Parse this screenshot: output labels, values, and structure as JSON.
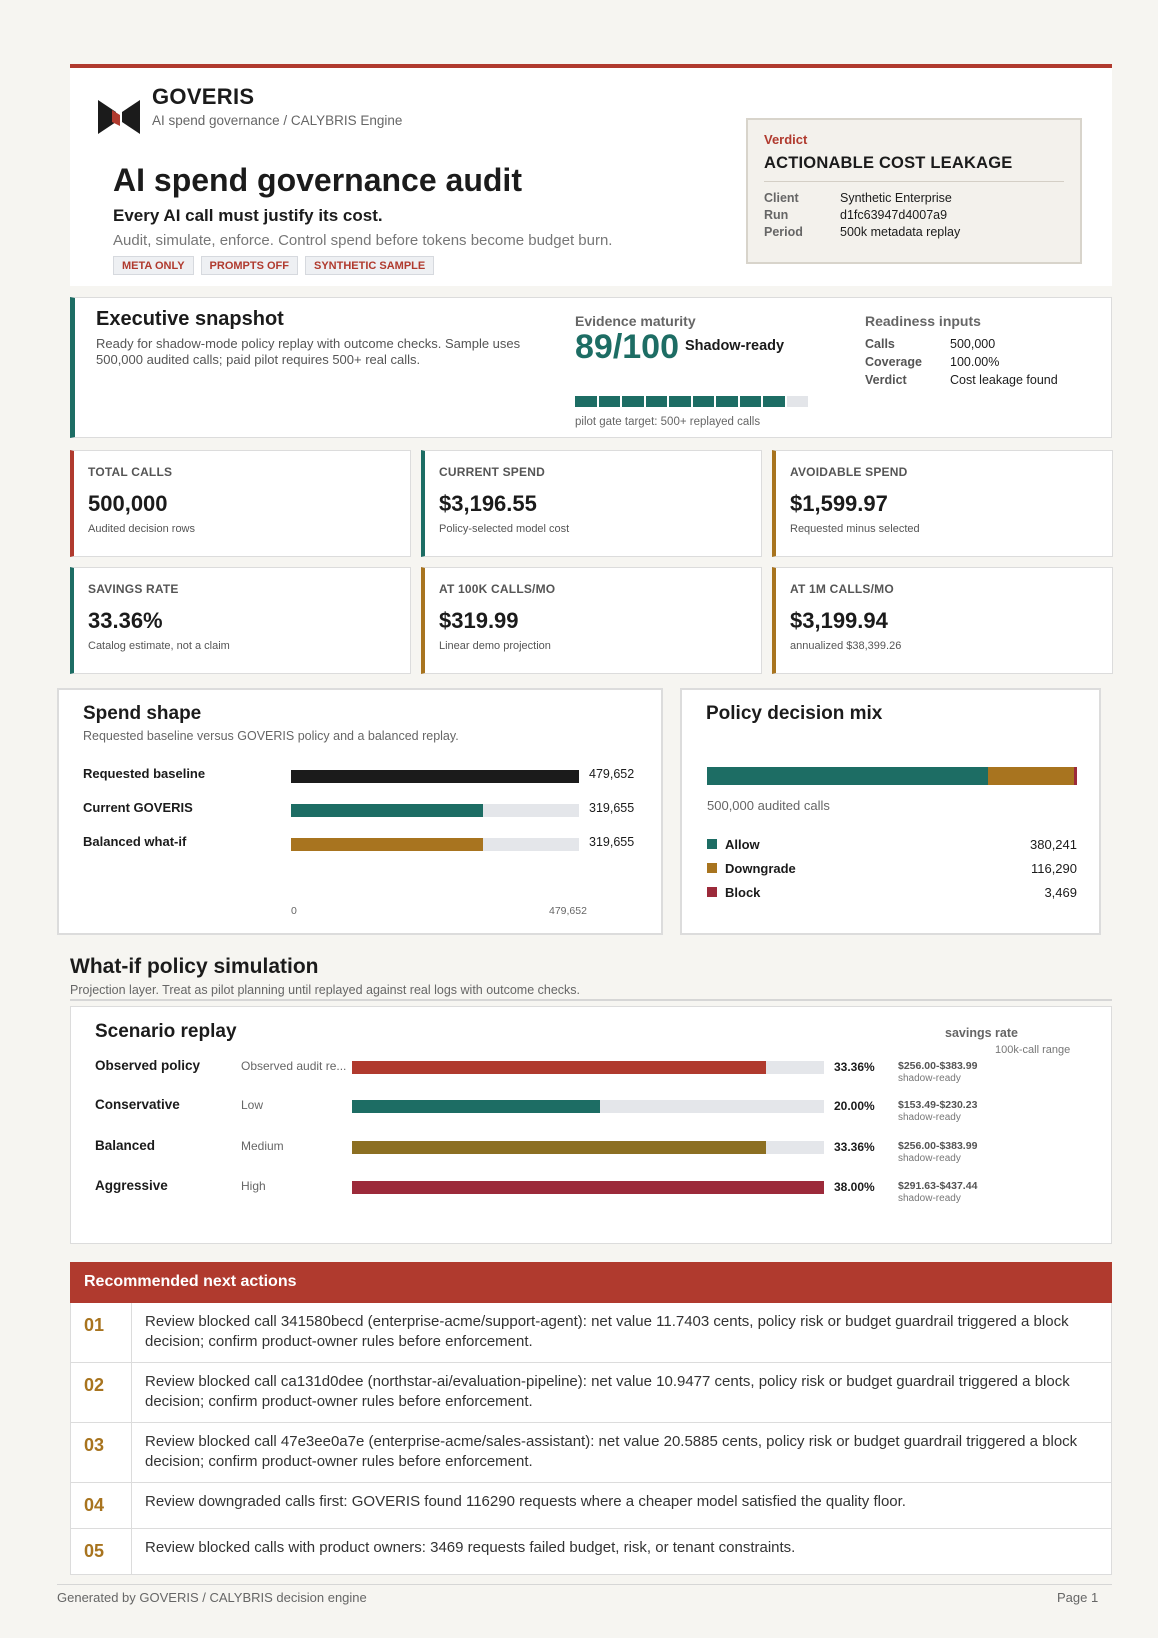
{
  "colors": {
    "accent_red": "#b03a2e",
    "teal": "#1d6d64",
    "amber": "#a8741f",
    "olive": "#8c6f22",
    "crimson": "#9c2a3a",
    "dark": "#1b1b1b"
  },
  "header": {
    "brand": "GOVERIS",
    "brand_sub": "AI spend governance / CALYBRIS Engine",
    "logo_icon": "goveris-logo",
    "title": "AI spend governance audit",
    "tagline": "Every AI call must justify its cost.",
    "description": "Audit, simulate, enforce. Control spend before tokens become budget burn.",
    "tags": [
      "META ONLY",
      "PROMPTS OFF",
      "SYNTHETIC SAMPLE"
    ]
  },
  "verdict": {
    "label": "Verdict",
    "title": "ACTIONABLE COST LEAKAGE",
    "rows": [
      {
        "k": "Client",
        "v": "Synthetic Enterprise"
      },
      {
        "k": "Run",
        "v": "d1fc63947d4007a9"
      },
      {
        "k": "Period",
        "v": "500k metadata replay"
      }
    ]
  },
  "snapshot": {
    "title": "Executive snapshot",
    "text": "Ready for shadow-mode policy replay with outcome checks. Sample uses 500,000 audited calls; paid pilot requires 500+ real calls.",
    "maturity_label": "Evidence maturity",
    "score": "89/100",
    "state": "Shadow-ready",
    "progress_filled": 9,
    "progress_total": 10,
    "note": "pilot gate target: 500+ replayed calls",
    "readiness_title": "Readiness inputs",
    "readiness": [
      {
        "k": "Calls",
        "v": "500,000"
      },
      {
        "k": "Coverage",
        "v": "100.00%"
      },
      {
        "k": "Verdict",
        "v": "Cost leakage found"
      }
    ]
  },
  "kpis": [
    {
      "label": "TOTAL CALLS",
      "value": "500,000",
      "sub": "Audited decision rows",
      "color": "#b03a2e"
    },
    {
      "label": "CURRENT SPEND",
      "value": "$3,196.55",
      "sub": "Policy-selected model cost",
      "color": "#1d6d64"
    },
    {
      "label": "AVOIDABLE SPEND",
      "value": "$1,599.97",
      "sub": "Requested minus selected",
      "color": "#a8741f"
    },
    {
      "label": "SAVINGS RATE",
      "value": "33.36%",
      "sub": "Catalog estimate, not a claim",
      "color": "#1d6d64"
    },
    {
      "label": "AT 100K CALLS/MO",
      "value": "$319.99",
      "sub": "Linear demo projection",
      "color": "#a8741f"
    },
    {
      "label": "AT 1M CALLS/MO",
      "value": "$3,199.94",
      "sub": "annualized $38,399.26",
      "color": "#a8741f"
    }
  ],
  "spend_shape": {
    "title": "Spend shape",
    "subtitle": "Requested baseline versus GOVERIS policy and a balanced replay.",
    "axis_min": "0",
    "axis_max": "479,652",
    "max_value": 479652,
    "rows": [
      {
        "label": "Requested baseline",
        "value": 479652,
        "display": "479,652",
        "color": "#1b1b1b"
      },
      {
        "label": "Current GOVERIS",
        "value": 319655,
        "display": "319,655",
        "color": "#1d6d64"
      },
      {
        "label": "Balanced what-if",
        "value": 319655,
        "display": "319,655",
        "color": "#a8741f"
      }
    ]
  },
  "policy_mix": {
    "title": "Policy decision mix",
    "note": "500,000 audited calls",
    "total": 500000,
    "items": [
      {
        "label": "Allow",
        "value": 380241,
        "display": "380,241",
        "color": "#1d6d64"
      },
      {
        "label": "Downgrade",
        "value": 116290,
        "display": "116,290",
        "color": "#a8741f"
      },
      {
        "label": "Block",
        "value": 3469,
        "display": "3,469",
        "color": "#9c2a3a"
      }
    ]
  },
  "whatif": {
    "title": "What-if policy simulation",
    "subtitle": "Projection layer. Treat as pilot planning until replayed against real logs with outcome checks.",
    "panel_title": "Scenario replay",
    "rate_head": "savings rate",
    "range_head": "100k-call range",
    "max_pct": 38.0,
    "scenarios": [
      {
        "name": "Observed policy",
        "level": "Observed audit re...",
        "pct": 33.36,
        "pct_label": "33.36%",
        "range": "$256.00-$383.99",
        "status": "shadow-ready",
        "color": "#b03a2e"
      },
      {
        "name": "Conservative",
        "level": "Low",
        "pct": 20.0,
        "pct_label": "20.00%",
        "range": "$153.49-$230.23",
        "status": "shadow-ready",
        "color": "#1d6d64"
      },
      {
        "name": "Balanced",
        "level": "Medium",
        "pct": 33.36,
        "pct_label": "33.36%",
        "range": "$256.00-$383.99",
        "status": "shadow-ready",
        "color": "#8c6f22"
      },
      {
        "name": "Aggressive",
        "level": "High",
        "pct": 38.0,
        "pct_label": "38.00%",
        "range": "$291.63-$437.44",
        "status": "shadow-ready",
        "color": "#9c2a3a"
      }
    ]
  },
  "actions": {
    "title": "Recommended next actions",
    "items": [
      {
        "no": "01",
        "text": "Review blocked call 341580becd (enterprise-acme/support-agent): net value 11.7403 cents, policy risk or budget guardrail triggered a block decision; confirm product-owner rules before enforcement."
      },
      {
        "no": "02",
        "text": "Review blocked call ca131d0dee (northstar-ai/evaluation-pipeline): net value 10.9477 cents, policy risk or budget guardrail triggered a block decision; confirm product-owner rules before enforcement."
      },
      {
        "no": "03",
        "text": "Review blocked call 47e3ee0a7e (enterprise-acme/sales-assistant): net value 20.5885 cents, policy risk or budget guardrail triggered a block decision; confirm product-owner rules before enforcement."
      },
      {
        "no": "04",
        "text": "Review downgraded calls first: GOVERIS found 116290 requests where a cheaper model satisfied the quality floor."
      },
      {
        "no": "05",
        "text": "Review blocked calls with product owners: 3469 requests failed budget, risk, or tenant constraints."
      }
    ]
  },
  "footer": {
    "left": "Generated by GOVERIS / CALYBRIS decision engine",
    "right": "Page 1"
  }
}
